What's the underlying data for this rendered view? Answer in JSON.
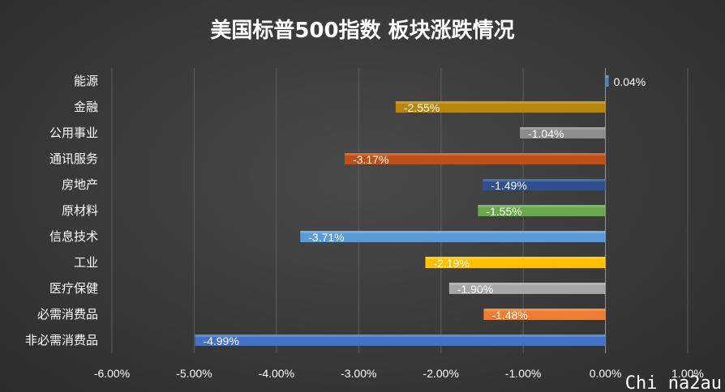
{
  "chart_data": {
    "type": "bar",
    "orientation": "horizontal",
    "title": "美国标普500指数 板块涨跌情况",
    "categories": [
      "能源",
      "金融",
      "公用事业",
      "通讯服务",
      "房地产",
      "原材料",
      "信息技术",
      "工业",
      "医疗保健",
      "必需消费品",
      "非必需消费品"
    ],
    "values": [
      0.04,
      -2.55,
      -1.04,
      -3.17,
      -1.49,
      -1.55,
      -3.71,
      -2.19,
      -1.9,
      -1.48,
      -4.99
    ],
    "data_labels": [
      "0.04%",
      "-2.55%",
      "-1.04%",
      "-3.17%",
      "-1.49%",
      "-1.55%",
      "-3.71%",
      "-2.19%",
      "-1.90%",
      "-1.48%",
      "-4.99%"
    ],
    "colors": [
      "#4f81bd",
      "#b8860b",
      "#8c8c8c",
      "#c0501a",
      "#2f4f8f",
      "#6aa84f",
      "#5b9bd5",
      "#ffc000",
      "#a5a5a5",
      "#ed7d31",
      "#4472c4"
    ],
    "xlim": [
      -6,
      1
    ],
    "x_ticks": [
      -6,
      -5,
      -4,
      -3,
      -2,
      -1,
      0,
      1
    ],
    "x_tick_labels": [
      "-6.00%",
      "-5.00%",
      "-4.00%",
      "-3.00%",
      "-2.00%",
      "-1.00%",
      "0.00%",
      "1.00%"
    ],
    "grid": true,
    "xlabel": "",
    "ylabel": ""
  },
  "watermark": "Chi na2au"
}
